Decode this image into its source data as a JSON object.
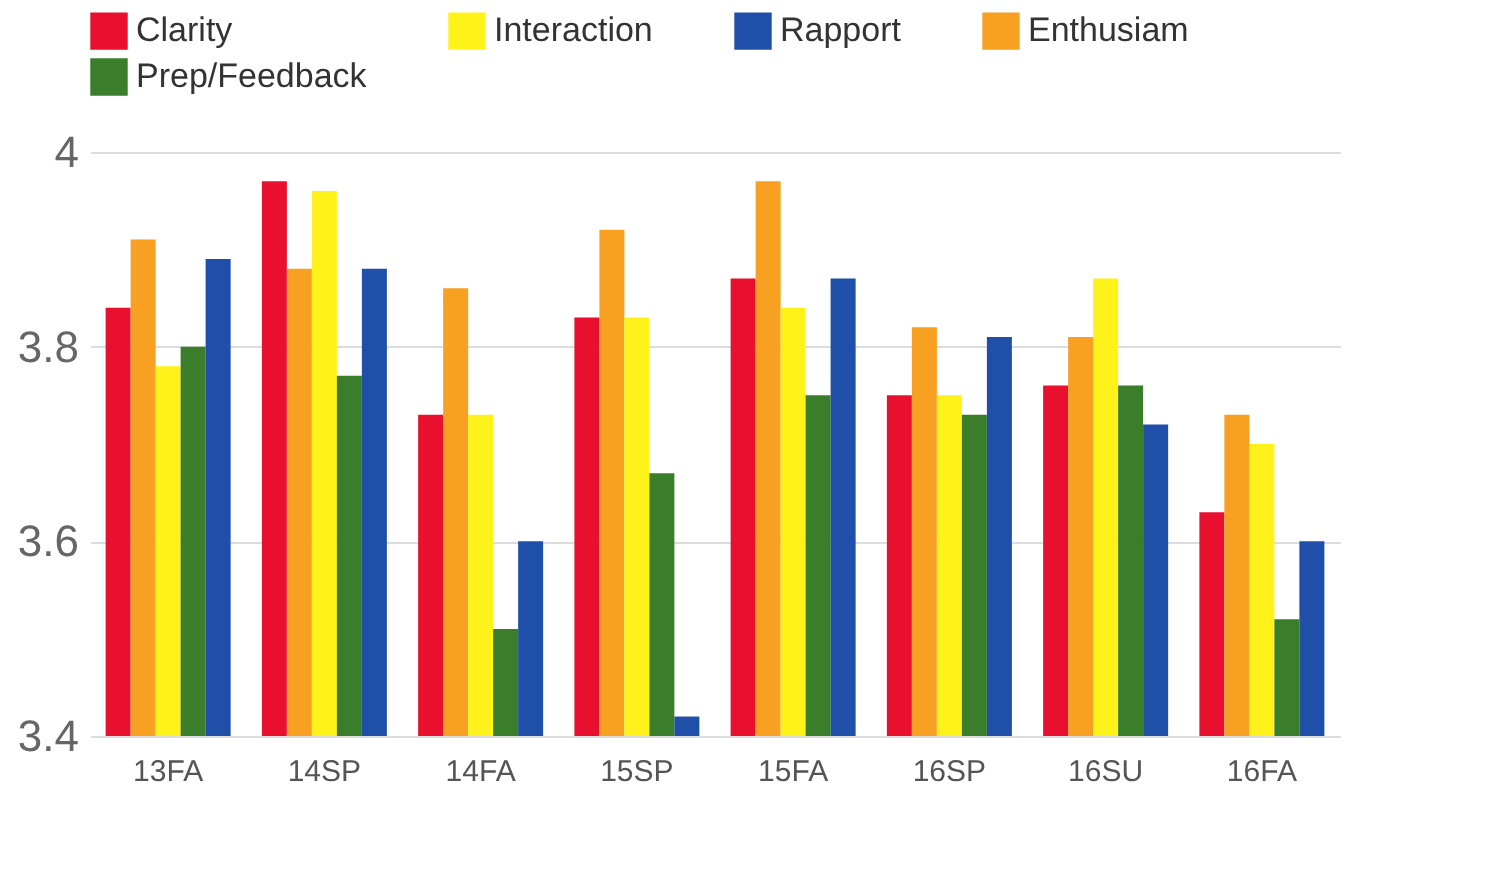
{
  "chart_data": {
    "type": "bar",
    "categories": [
      "13FA",
      "14SP",
      "14FA",
      "15SP",
      "15FA",
      "16SP",
      "16SU",
      "16FA"
    ],
    "series": [
      {
        "name": "Clarity",
        "color": "#e8102e",
        "values": [
          3.84,
          3.97,
          3.73,
          3.83,
          3.87,
          3.75,
          3.76,
          3.63
        ]
      },
      {
        "name": "Enthusiam",
        "color": "#f7a021",
        "values": [
          3.91,
          3.88,
          3.86,
          3.92,
          3.97,
          3.82,
          3.81,
          3.73
        ]
      },
      {
        "name": "Interaction",
        "color": "#fff21a",
        "values": [
          3.78,
          3.96,
          3.73,
          3.83,
          3.84,
          3.75,
          3.87,
          3.7
        ]
      },
      {
        "name": "Prep/Feedback",
        "color": "#3a7d2a",
        "values": [
          3.8,
          3.77,
          3.51,
          3.67,
          3.75,
          3.73,
          3.76,
          3.52
        ]
      },
      {
        "name": "Rapport",
        "color": "#1f4fa8",
        "values": [
          3.89,
          3.88,
          3.6,
          3.42,
          3.87,
          3.81,
          3.72,
          3.6
        ]
      }
    ],
    "ylim": [
      3.4,
      4
    ],
    "yticks": [
      3.4,
      3.6,
      3.8,
      4
    ],
    "grid": "y",
    "legend": "top"
  }
}
